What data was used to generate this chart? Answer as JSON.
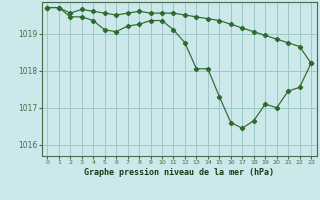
{
  "title": "Graphe pression niveau de la mer (hPa)",
  "background_color": "#cce8ea",
  "line_color": "#2d6a2d",
  "grid_color": "#a0c8c8",
  "axis_color": "#4a6a4a",
  "xlabel_color": "#1a3a1a",
  "xlim": [
    -0.5,
    23.5
  ],
  "ylim": [
    1015.7,
    1019.85
  ],
  "yticks": [
    1016,
    1017,
    1018,
    1019
  ],
  "xticks": [
    0,
    1,
    2,
    3,
    4,
    5,
    6,
    7,
    8,
    9,
    10,
    11,
    12,
    13,
    14,
    15,
    16,
    17,
    18,
    19,
    20,
    21,
    22,
    23
  ],
  "series1_x": [
    0,
    1,
    2,
    3,
    4,
    5,
    6,
    7,
    8,
    9,
    10,
    11,
    12,
    13,
    14,
    15,
    16,
    17,
    18,
    19,
    20,
    21,
    22,
    23
  ],
  "series1_y": [
    1019.7,
    1019.7,
    1019.55,
    1019.65,
    1019.6,
    1019.55,
    1019.5,
    1019.55,
    1019.6,
    1019.55,
    1019.55,
    1019.55,
    1019.5,
    1019.45,
    1019.4,
    1019.35,
    1019.25,
    1019.15,
    1019.05,
    1018.95,
    1018.85,
    1018.75,
    1018.65,
    1018.2
  ],
  "series2_x": [
    0,
    1,
    2,
    3,
    4,
    5,
    6,
    7,
    8,
    9,
    10,
    11,
    12,
    13,
    14,
    15,
    16,
    17,
    18,
    19,
    20,
    21,
    22,
    23
  ],
  "series2_y": [
    1019.7,
    1019.7,
    1019.45,
    1019.45,
    1019.35,
    1019.1,
    1019.05,
    1019.2,
    1019.25,
    1019.35,
    1019.35,
    1019.1,
    1018.75,
    1018.05,
    1018.05,
    1017.3,
    1016.6,
    1016.45,
    1016.65,
    1017.1,
    1017.0,
    1017.45,
    1017.55,
    1018.2
  ]
}
